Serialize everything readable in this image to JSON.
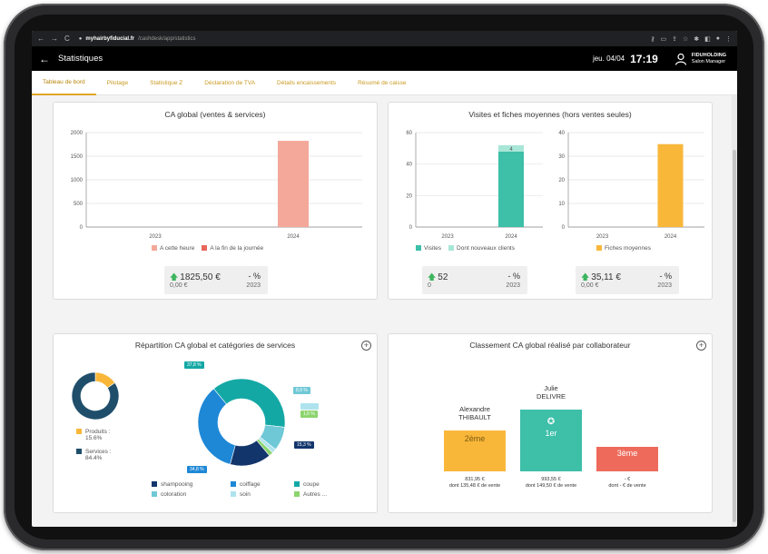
{
  "browser": {
    "nav_back": "←",
    "nav_forward": "→",
    "nav_reload": "C",
    "url_host": "myhairbyfiducial.fr",
    "url_path": "/cashdesk/app/statistics",
    "menu": "⋮"
  },
  "header": {
    "back_icon": "arrow-left-icon",
    "title": "Statistiques",
    "date": "jeu. 04/04",
    "time": "17:19",
    "user_company": "FIDUHOLDING",
    "user_role": "Salon Manager"
  },
  "tabs": [
    {
      "label": "Tableau de bord",
      "active": true
    },
    {
      "label": "Pilotage",
      "active": false
    },
    {
      "label": "Statistique Z",
      "active": false
    },
    {
      "label": "Déclaration de TVA",
      "active": false
    },
    {
      "label": "Détails encaissements",
      "active": false
    },
    {
      "label": "Résumé de caisse",
      "active": false
    }
  ],
  "ca_global": {
    "title": "CA global (ventes & services)",
    "legend": [
      "A cette heure",
      "A la fin de la journée"
    ],
    "colors": [
      "#f4a89a",
      "#e8665a"
    ],
    "stat_value": "1825,50 €",
    "stat_pct": "- %",
    "stat_prev": "0,00 €",
    "stat_year": "2023"
  },
  "visites": {
    "title": "Visites et fiches moyennes (hors ventes seules)",
    "legend_visits": [
      "Visites",
      "Dont nouveaux clients"
    ],
    "legend_fiches": "Fiches moyennes",
    "bar_label": "4",
    "stat1_value": "52",
    "stat1_pct": "- %",
    "stat1_prev": "0",
    "stat1_year": "2023",
    "stat2_value": "35,11 €",
    "stat2_pct": "- %",
    "stat2_prev": "0,00 €",
    "stat2_year": "2023"
  },
  "repartition": {
    "title": "Répartition CA global et catégories de services",
    "small_legend": [
      {
        "label": "Produits :",
        "pct": "15.6%",
        "color": "#f9b73a"
      },
      {
        "label": "Services :",
        "pct": "84.4%",
        "color": "#1f4e6b"
      }
    ],
    "donut_labels": [
      "37,8 %",
      "8,9 %",
      "1,6 %",
      "15,3 %",
      "34,8 %"
    ],
    "legend": [
      {
        "label": "shampooing",
        "color": "#12356b"
      },
      {
        "label": "coiffage",
        "color": "#1e88d6"
      },
      {
        "label": "coupe",
        "color": "#14a8a5"
      },
      {
        "label": "coloration",
        "color": "#6fc8d6"
      },
      {
        "label": "soin",
        "color": "#aee3ee"
      },
      {
        "label": "Autres ...",
        "color": "#8bd46e"
      }
    ]
  },
  "classement": {
    "title": "Classement CA global réalisé par collaborateur",
    "ranks": [
      {
        "first": "Alexandre",
        "last": "THIBAULT",
        "rank": "2ème",
        "amount": "831,95 €",
        "detail": "dont 135,48 € de vente",
        "color": "#f9b73a",
        "share": 0.84
      },
      {
        "first": "Julie",
        "last": "DELIVRE",
        "rank": "1er",
        "amount": "993,55 €",
        "detail": "dont 149,50 € de vente",
        "color": "#3dbfa8",
        "share": 1.0
      },
      {
        "first": "",
        "last": "",
        "rank": "3ème",
        "amount": "- €",
        "detail": "dont - € de vente",
        "color": "#ee6b5c",
        "share": 0.42
      }
    ]
  },
  "chart_data": [
    {
      "type": "bar",
      "title": "CA global (ventes & services)",
      "categories": [
        "2023",
        "2024"
      ],
      "series": [
        {
          "name": "A cette heure",
          "values": [
            0,
            1825.5
          ]
        },
        {
          "name": "A la fin de la journée",
          "values": [
            0,
            0
          ]
        }
      ],
      "ylim": [
        0,
        2000
      ],
      "yticks": [
        0,
        500,
        1000,
        1500,
        2000
      ],
      "grid": true,
      "legend": "bottom"
    },
    {
      "type": "bar",
      "title": "Visites et fiches moyennes (hors ventes seules)",
      "stacked": true,
      "categories": [
        "2023",
        "2024"
      ],
      "series": [
        {
          "name": "Visites",
          "values": [
            0,
            48
          ]
        },
        {
          "name": "Dont nouveaux clients",
          "values": [
            0,
            4
          ]
        }
      ],
      "ylim": [
        0,
        60
      ],
      "yticks": [
        0,
        20,
        40,
        60
      ],
      "grid": true,
      "legend": "bottom"
    },
    {
      "type": "bar",
      "categories": [
        "2023",
        "2024"
      ],
      "series": [
        {
          "name": "Fiches moyennes",
          "values": [
            0,
            35.11
          ]
        }
      ],
      "ylim": [
        0,
        40
      ],
      "yticks": [
        0,
        10,
        20,
        30,
        40
      ],
      "grid": true,
      "legend": "bottom"
    },
    {
      "type": "pie",
      "categories": [
        "Produits",
        "Services"
      ],
      "values": [
        15.6,
        84.4
      ]
    },
    {
      "type": "pie",
      "categories": [
        "coupe",
        "coloration",
        "soin",
        "Autres ...",
        "shampooing",
        "coiffage"
      ],
      "values": [
        37.8,
        8.9,
        1.6,
        1.6,
        15.3,
        34.8
      ]
    }
  ]
}
